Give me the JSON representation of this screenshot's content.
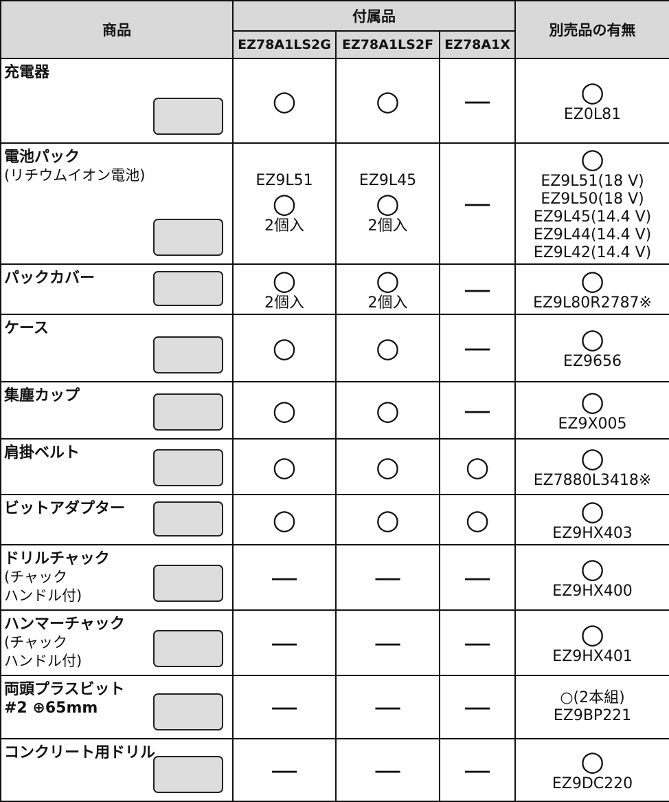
{
  "header": {
    "product": "商品",
    "accessories": "付属品",
    "models": [
      "EZ78A1LS2G",
      "EZ78A1LS2F",
      "EZ78A1X"
    ],
    "separate": "別売品の有無"
  },
  "rows": [
    {
      "name": [
        "充電器"
      ],
      "note": [],
      "cells": [
        [
          "○"
        ],
        [
          "○"
        ],
        [
          "—"
        ]
      ],
      "separate": [
        "○",
        "EZ0L81"
      ]
    },
    {
      "name": [
        "電池パック"
      ],
      "note": [
        "(リチウムイオン電池)"
      ],
      "cells": [
        [
          "EZ9L51",
          "○",
          "2個入"
        ],
        [
          "EZ9L45",
          "○",
          "2個入"
        ],
        [
          "—"
        ]
      ],
      "separate": [
        "○",
        "EZ9L51(18 V)",
        "EZ9L50(18 V)",
        "EZ9L45(14.4 V)",
        "EZ9L44(14.4 V)",
        "EZ9L42(14.4 V)"
      ]
    },
    {
      "name": [
        "パックカバー"
      ],
      "note": [],
      "cells": [
        [
          "○",
          "2個入"
        ],
        [
          "○",
          "2個入"
        ],
        [
          "—"
        ]
      ],
      "separate": [
        "○",
        "EZ9L80R2787※"
      ]
    },
    {
      "name": [
        "ケース"
      ],
      "note": [],
      "cells": [
        [
          "○"
        ],
        [
          "○"
        ],
        [
          "—"
        ]
      ],
      "separate": [
        "○",
        "EZ9656"
      ]
    },
    {
      "name": [
        "集塵カップ"
      ],
      "note": [],
      "cells": [
        [
          "○"
        ],
        [
          "○"
        ],
        [
          "—"
        ]
      ],
      "separate": [
        "○",
        "EZ9X005"
      ]
    },
    {
      "name": [
        "肩掛ベルト"
      ],
      "note": [],
      "cells": [
        [
          "○"
        ],
        [
          "○"
        ],
        [
          "○"
        ]
      ],
      "separate": [
        "○",
        "EZ7880L3418※"
      ]
    },
    {
      "name": [
        "ビットアダプター"
      ],
      "note": [],
      "cells": [
        [
          "○"
        ],
        [
          "○"
        ],
        [
          "○"
        ]
      ],
      "separate": [
        "○",
        "EZ9HX403"
      ]
    },
    {
      "name": [
        "ドリルチャック"
      ],
      "note": [
        "(チャック",
        "ハンドル付)"
      ],
      "cells": [
        [
          "—"
        ],
        [
          "—"
        ],
        [
          "—"
        ]
      ],
      "separate": [
        "○",
        "EZ9HX400"
      ]
    },
    {
      "name": [
        "ハンマーチャック"
      ],
      "note": [
        "(チャック",
        "ハンドル付)"
      ],
      "cells": [
        [
          "—"
        ],
        [
          "—"
        ],
        [
          "—"
        ]
      ],
      "separate": [
        "○",
        "EZ9HX401"
      ]
    },
    {
      "name": [
        "両頭プラスビット",
        "#2 ⊕65mm"
      ],
      "note": [],
      "cells": [
        [
          "—"
        ],
        [
          "—"
        ],
        [
          "—"
        ]
      ],
      "separate": [
        "○(2本組)",
        "EZ9BP221"
      ]
    },
    {
      "name": [
        "コンクリート用ドリル"
      ],
      "note": [],
      "cells": [
        [
          "—"
        ],
        [
          "—"
        ],
        [
          "—"
        ]
      ],
      "separate": [
        "○",
        "EZ9DC220"
      ]
    }
  ]
}
